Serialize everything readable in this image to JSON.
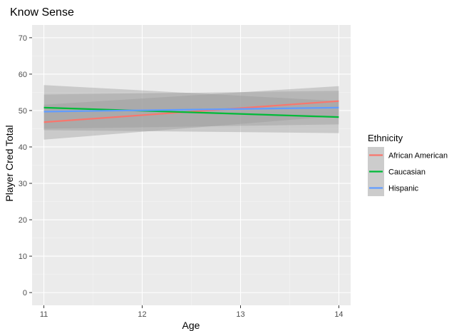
{
  "chart_data": {
    "type": "line",
    "title": "Know Sense",
    "xlabel": "Age",
    "ylabel": "Player Cred Total",
    "xlim": [
      10.88,
      14.12
    ],
    "ylim": [
      -3.5,
      73.5
    ],
    "x_ticks": [
      "11",
      "12",
      "13",
      "14"
    ],
    "y_ticks": [
      "0",
      "10",
      "20",
      "30",
      "40",
      "50",
      "60",
      "70"
    ],
    "grid": true,
    "legend": {
      "title": "Ethnicity",
      "position": "right"
    },
    "series": [
      {
        "name": "African American",
        "color": "#F8766D",
        "x": [
          11,
          14
        ],
        "y": [
          46.8,
          52.6
        ],
        "lower": [
          42.0,
          48.5
        ],
        "upper": [
          51.6,
          56.7
        ]
      },
      {
        "name": "Caucasian",
        "color": "#00BA38",
        "x": [
          11,
          14
        ],
        "y": [
          50.8,
          48.2
        ],
        "lower": [
          44.6,
          43.8
        ],
        "upper": [
          57.0,
          52.6
        ]
      },
      {
        "name": "Hispanic",
        "color": "#619CFF",
        "x": [
          11,
          14
        ],
        "y": [
          49.7,
          50.8
        ],
        "lower": [
          45.0,
          46.2
        ],
        "upper": [
          54.4,
          55.4
        ]
      }
    ]
  }
}
